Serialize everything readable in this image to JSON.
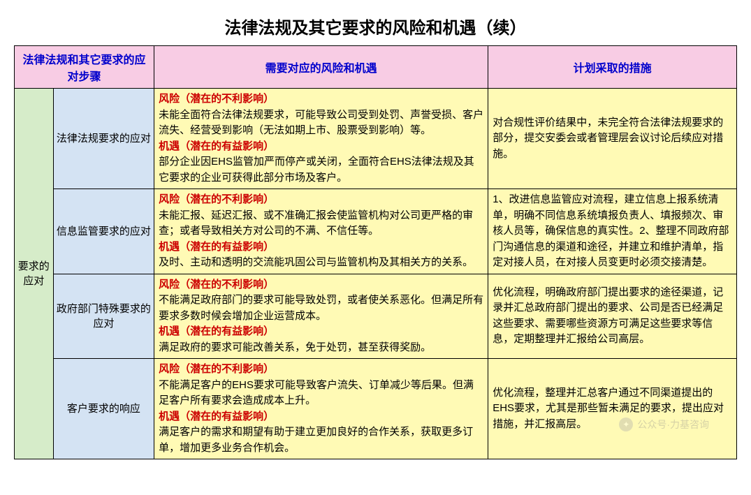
{
  "title": "法律法规及其它要求的风险和机遇（续）",
  "headers": {
    "steps": "法律法规和其它要求的应对步骤",
    "risk": "需要对应的风险和机遇",
    "plan": "计划采取的措施"
  },
  "side_label": "要求的应对",
  "labels": {
    "risk": "风险（潜在的不利影响）",
    "opp": "机遇（潜在的有益影响）"
  },
  "rows": [
    {
      "step": "法律法规要求的应对",
      "risk_text": "未能全面符合法律法规要求，可能导致公司受到处罚、声誉受损、客户流失、经营受到影响（无法如期上市、股票受到影响）等。",
      "opp_text": "部分企业因EHS监管加严而停产或关闭，全面符合EHS法律法规及其它要求的企业可获得此部分市场及客户。",
      "plan": "对合规性评价结果中，未完全符合法律法规要求的部分，提交安委会或者管理层会议讨论后续应对措施。"
    },
    {
      "step": "信息监管要求的应对",
      "risk_text": "未能汇报、延迟汇报、或不准确汇报会使监管机构对公司更严格的审查；或者导致相关方对公司的不满、不信任等。",
      "opp_text": "及时、主动和透明的交流能巩固公司与监管机构及其相关方的关系。",
      "plan": "1、改进信息监管应对流程，建立信息上报系统清单，明确不同信息系统填报负责人、填报频次、审核人员等，确保信息的真实性。2、整理不同政府部门沟通信息的渠道和途径，并建立和维护清单，指定对接人员，在对接人员变更时必须交接清楚。"
    },
    {
      "step": "政府部门特殊要求的应对",
      "risk_text": "不能满足政府部门的要求可能导致处罚，或者使关系恶化。但满足所有要求多数时候会增加企业运营成本。",
      "opp_text": "满足政府的要求可能改善关系，免于处罚，甚至获得奖励。",
      "plan": "优化流程，明确政府部门提出要求的途径渠道，记录并汇总政府部门提出的要求、公司是否已经满足这些要求、需要哪些资源方可满足这些要求等信息，定期整理并汇报给公司高层。"
    },
    {
      "step": "客户要求的响应",
      "risk_text": "不能满足客户的EHS要求可能导致客户流失、订单减少等后果。但满足客户所有要求会造成成本上升。",
      "opp_text": "满足客户的需求和期望有助于建立更加良好的合作关系，获取更多订单，增加更多业务合作机会。",
      "plan": "优化流程，整理并汇总客户通过不同渠道提出的EHS要求，尤其是那些暂未满足的要求，提出应对措施，并汇报高层。"
    }
  ],
  "watermark": "公众号·力基咨询",
  "colors": {
    "header_bg": "#f8cce4",
    "header_text": "#0000cc",
    "green_bg": "#d6ecc9",
    "blue_bg": "#d4e3f3",
    "yellow_bg": "#fffab5",
    "risk_label": "#cc0000",
    "border": "#000000"
  }
}
